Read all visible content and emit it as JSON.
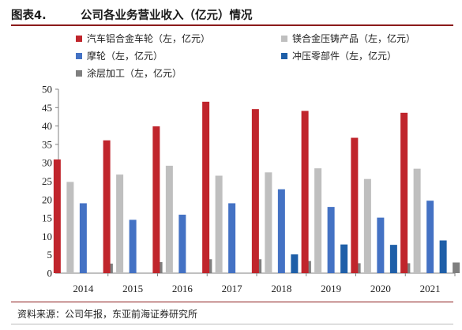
{
  "figure_label": "图表4.",
  "figure_title": "公司各业务营业收入（亿元）情况",
  "source": "资料来源：公司年报，东亚前海证券研究所",
  "chart_data": {
    "type": "bar",
    "categories": [
      "2014",
      "2015",
      "2016",
      "2017",
      "2018",
      "2019",
      "2020",
      "2021"
    ],
    "ylim": [
      0,
      50
    ],
    "yticks": [
      0,
      5,
      10,
      15,
      20,
      25,
      30,
      35,
      40,
      45,
      50
    ],
    "grid": false,
    "legend_placement": "top",
    "series": [
      {
        "name": "汽车铝合金车轮（左，亿元）",
        "color": "#c0252c",
        "values": [
          30.9,
          36.1,
          39.9,
          46.6,
          44.6,
          44.1,
          36.8,
          43.6
        ]
      },
      {
        "name": "镁合金压铸产品（左，亿元）",
        "color": "#bfbfbf",
        "values": [
          24.8,
          26.8,
          29.2,
          26.5,
          27.4,
          28.5,
          25.6,
          28.4
        ]
      },
      {
        "name": "摩轮（左，亿元）",
        "color": "#4472c4",
        "values": [
          19.0,
          14.5,
          15.9,
          19.0,
          22.8,
          18.0,
          15.1,
          19.7
        ]
      },
      {
        "name": "冲压零部件（左，亿元）",
        "color": "#1f5fa8",
        "values": [
          null,
          null,
          null,
          null,
          5.1,
          7.8,
          7.7,
          8.9
        ]
      },
      {
        "name": "涂层加工（左，亿元）",
        "color": "#7f7f7f",
        "values": [
          2.6,
          3.0,
          3.8,
          3.8,
          3.3,
          2.7,
          2.7,
          2.9
        ]
      }
    ]
  }
}
